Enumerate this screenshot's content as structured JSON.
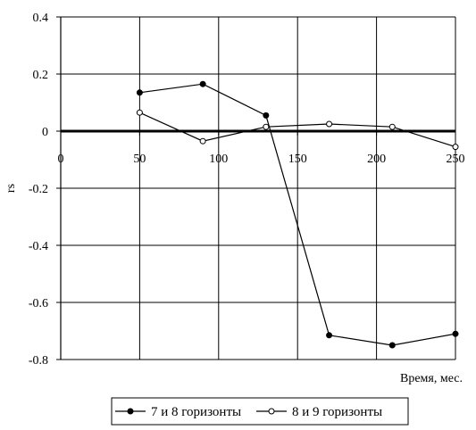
{
  "chart_data": {
    "type": "line",
    "title": "",
    "xlabel": "Время, мес.",
    "ylabel": "rs",
    "xlim": [
      0,
      250
    ],
    "ylim": [
      -0.8,
      0.4
    ],
    "x_ticks": [
      0,
      50,
      100,
      150,
      200,
      250
    ],
    "x_tick_labels": [
      "0",
      "50",
      "100",
      "150",
      "200",
      "250"
    ],
    "y_ticks": [
      -0.8,
      -0.6,
      -0.4,
      -0.2,
      0,
      0.2,
      0.4
    ],
    "y_tick_labels": [
      "-0.8",
      "-0.6",
      "-0.4",
      "-0.2",
      "0",
      "0.2",
      "0.4"
    ],
    "grid": true,
    "legend_position": "bottom",
    "series": [
      {
        "name": "7 и 8 горизонты",
        "marker": "filled-circle",
        "color": "#000000",
        "x": [
          50,
          90,
          130,
          170,
          210,
          250
        ],
        "y": [
          0.135,
          0.165,
          0.055,
          -0.715,
          -0.75,
          -0.71
        ]
      },
      {
        "name": "8 и 9 горизонты",
        "marker": "open-circle",
        "color": "#000000",
        "x": [
          50,
          90,
          130,
          170,
          210,
          250
        ],
        "y": [
          0.065,
          -0.035,
          0.015,
          0.025,
          0.015,
          -0.055
        ]
      }
    ]
  }
}
